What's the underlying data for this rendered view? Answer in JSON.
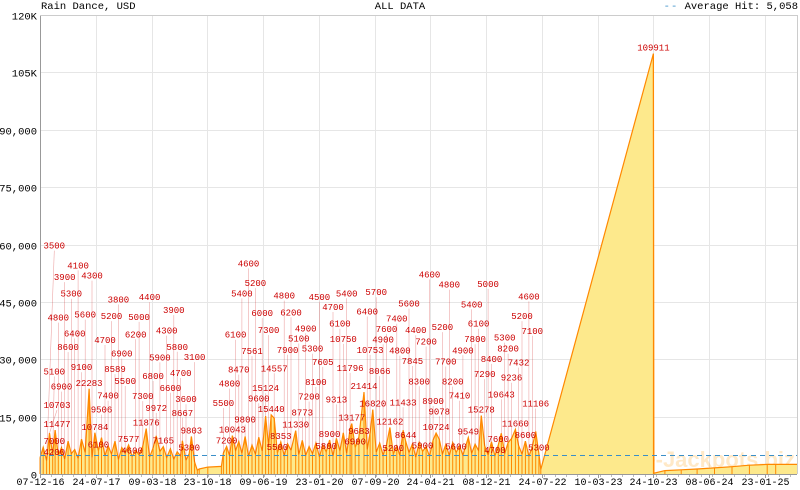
{
  "header": {
    "title": "Rain Dance, USD",
    "subtitle": "ALL DATA",
    "legend_dash": "--",
    "legend_label": "Average Hit: 5,058"
  },
  "watermark": "Online-Jackpots.biz",
  "colors": {
    "fill": "#fde98c",
    "line": "#ff8800",
    "labels": "#cc0000",
    "average": "#3a8fc8",
    "grid": "#e6e6e6",
    "axis": "#999999"
  },
  "chart_data": {
    "type": "area",
    "title": "Rain Dance, USD",
    "subtitle": "ALL DATA",
    "xlabel": "",
    "ylabel": "",
    "ylim": [
      0,
      120000
    ],
    "grid": true,
    "legend": "top-right",
    "average": 5058,
    "y_ticks": [
      {
        "value": 0,
        "label": "0"
      },
      {
        "value": 15000,
        "label": "15,000"
      },
      {
        "value": 30000,
        "label": "30,000"
      },
      {
        "value": 45000,
        "label": "45,000"
      },
      {
        "value": 60000,
        "label": "60,000"
      },
      {
        "value": 75000,
        "label": "75,000"
      },
      {
        "value": 90000,
        "label": "90,000"
      },
      {
        "value": 105000,
        "label": "105K"
      },
      {
        "value": 120000,
        "label": "120K"
      }
    ],
    "x_ticks": [
      {
        "date": "2016-12-07",
        "label": "07-12-16"
      },
      {
        "date": "2017-07-24",
        "label": "24-07-17"
      },
      {
        "date": "2018-03-09",
        "label": "09-03-18"
      },
      {
        "date": "2018-10-23",
        "label": "23-10-18"
      },
      {
        "date": "2019-06-09",
        "label": "09-06-19"
      },
      {
        "date": "2020-01-23",
        "label": "23-01-20"
      },
      {
        "date": "2020-09-07",
        "label": "07-09-20"
      },
      {
        "date": "2021-04-24",
        "label": "24-04-21"
      },
      {
        "date": "2021-12-08",
        "label": "08-12-21"
      },
      {
        "date": "2022-07-24",
        "label": "24-07-22"
      },
      {
        "date": "2023-03-10",
        "label": "10-03-23"
      },
      {
        "date": "2023-10-24",
        "label": "24-10-23"
      },
      {
        "date": "2024-06-08",
        "label": "08-06-24"
      },
      {
        "date": "2025-01-23",
        "label": "23-01-25"
      }
    ],
    "points": [
      [
        "2016-12-07",
        4200
      ],
      [
        "2016-12-20",
        7000
      ],
      [
        "2017-01-03",
        3500
      ],
      [
        "2017-01-15",
        10703
      ],
      [
        "2017-01-28",
        5100
      ],
      [
        "2017-02-07",
        11477
      ],
      [
        "2017-02-20",
        4800
      ],
      [
        "2017-03-05",
        6900
      ],
      [
        "2017-03-18",
        3900
      ],
      [
        "2017-04-01",
        8600
      ],
      [
        "2017-04-14",
        5300
      ],
      [
        "2017-04-28",
        6400
      ],
      [
        "2017-05-12",
        4100
      ],
      [
        "2017-05-26",
        9100
      ],
      [
        "2017-06-10",
        5600
      ],
      [
        "2017-06-26",
        22283
      ],
      [
        "2017-07-08",
        4300
      ],
      [
        "2017-07-20",
        10784
      ],
      [
        "2017-08-03",
        6100
      ],
      [
        "2017-08-16",
        9506
      ],
      [
        "2017-08-30",
        4700
      ],
      [
        "2017-09-12",
        7400
      ],
      [
        "2017-09-26",
        5200
      ],
      [
        "2017-10-10",
        8589
      ],
      [
        "2017-10-24",
        3800
      ],
      [
        "2017-11-07",
        6900
      ],
      [
        "2017-11-21",
        5500
      ],
      [
        "2017-12-05",
        7577
      ],
      [
        "2017-12-19",
        4600
      ],
      [
        "2018-01-03",
        6200
      ],
      [
        "2018-01-17",
        5000
      ],
      [
        "2018-02-01",
        7300
      ],
      [
        "2018-02-15",
        11876
      ],
      [
        "2018-03-01",
        4400
      ],
      [
        "2018-03-15",
        6800
      ],
      [
        "2018-03-28",
        9972
      ],
      [
        "2018-04-12",
        5900
      ],
      [
        "2018-04-26",
        7165
      ],
      [
        "2018-05-10",
        4300
      ],
      [
        "2018-05-25",
        6600
      ],
      [
        "2018-06-08",
        3900
      ],
      [
        "2018-06-22",
        5800
      ],
      [
        "2018-07-06",
        4700
      ],
      [
        "2018-07-13",
        8667
      ],
      [
        "2018-07-28",
        3600
      ],
      [
        "2018-08-10",
        5300
      ],
      [
        "2018-08-19",
        9803
      ],
      [
        "2018-09-01",
        3100
      ],
      [
        "2018-09-12",
        1000
      ],
      [
        "2018-09-20",
        1300
      ],
      [
        "2018-10-25",
        1800
      ],
      [
        "2018-12-20",
        2000
      ],
      [
        "2018-12-28",
        5500
      ],
      [
        "2019-01-10",
        7200
      ],
      [
        "2019-01-22",
        4800
      ],
      [
        "2019-02-03",
        10043
      ],
      [
        "2019-02-16",
        6100
      ],
      [
        "2019-03-01",
        8470
      ],
      [
        "2019-03-14",
        5400
      ],
      [
        "2019-03-27",
        9800
      ],
      [
        "2019-04-10",
        4600
      ],
      [
        "2019-04-24",
        7561
      ],
      [
        "2019-05-08",
        5200
      ],
      [
        "2019-05-22",
        9600
      ],
      [
        "2019-06-05",
        6000
      ],
      [
        "2019-06-19",
        15124
      ],
      [
        "2019-07-01",
        7300
      ],
      [
        "2019-07-12",
        15440
      ],
      [
        "2019-07-24",
        14557
      ],
      [
        "2019-08-06",
        5500
      ],
      [
        "2019-08-20",
        8353
      ],
      [
        "2019-09-03",
        4800
      ],
      [
        "2019-09-17",
        7900
      ],
      [
        "2019-10-01",
        6200
      ],
      [
        "2019-10-20",
        11330
      ],
      [
        "2019-11-02",
        5100
      ],
      [
        "2019-11-16",
        8773
      ],
      [
        "2019-11-30",
        4900
      ],
      [
        "2019-12-14",
        7200
      ],
      [
        "2019-12-28",
        5300
      ],
      [
        "2020-01-11",
        8100
      ],
      [
        "2020-01-25",
        4500
      ],
      [
        "2020-02-08",
        7605
      ],
      [
        "2020-02-22",
        5800
      ],
      [
        "2020-03-07",
        8900
      ],
      [
        "2020-03-21",
        4700
      ],
      [
        "2020-04-04",
        9313
      ],
      [
        "2020-04-18",
        6100
      ],
      [
        "2020-05-02",
        10750
      ],
      [
        "2020-05-16",
        5400
      ],
      [
        "2020-05-30",
        11796
      ],
      [
        "2020-06-06",
        13177
      ],
      [
        "2020-06-20",
        6900
      ],
      [
        "2020-07-05",
        9683
      ],
      [
        "2020-07-26",
        21414
      ],
      [
        "2020-08-08",
        6400
      ],
      [
        "2020-08-20",
        10753
      ],
      [
        "2020-08-31",
        16820
      ],
      [
        "2020-09-14",
        5700
      ],
      [
        "2020-09-28",
        8066
      ],
      [
        "2020-10-12",
        4900
      ],
      [
        "2020-10-26",
        7600
      ],
      [
        "2020-11-09",
        12162
      ],
      [
        "2020-11-23",
        5200
      ],
      [
        "2020-12-07",
        7400
      ],
      [
        "2020-12-20",
        4800
      ],
      [
        "2021-01-02",
        11433
      ],
      [
        "2021-01-12",
        8644
      ],
      [
        "2021-01-26",
        5600
      ],
      [
        "2021-02-09",
        7845
      ],
      [
        "2021-02-23",
        4400
      ],
      [
        "2021-03-09",
        8300
      ],
      [
        "2021-03-23",
        5900
      ],
      [
        "2021-04-06",
        7200
      ],
      [
        "2021-04-20",
        4600
      ],
      [
        "2021-05-05",
        8900
      ],
      [
        "2021-05-17",
        10724
      ],
      [
        "2021-05-30",
        9078
      ],
      [
        "2021-06-12",
        5200
      ],
      [
        "2021-06-26",
        7700
      ],
      [
        "2021-07-10",
        4800
      ],
      [
        "2021-07-24",
        8200
      ],
      [
        "2021-08-07",
        5600
      ],
      [
        "2021-08-21",
        7410
      ],
      [
        "2021-09-04",
        4900
      ],
      [
        "2021-09-26",
        9549
      ],
      [
        "2021-10-10",
        5400
      ],
      [
        "2021-10-24",
        7800
      ],
      [
        "2021-11-07",
        6100
      ],
      [
        "2021-11-18",
        15278
      ],
      [
        "2021-12-02",
        7290
      ],
      [
        "2021-12-16",
        5000
      ],
      [
        "2021-12-30",
        8400
      ],
      [
        "2022-01-13",
        4700
      ],
      [
        "2022-01-27",
        7600
      ],
      [
        "2022-02-08",
        10643
      ],
      [
        "2022-02-22",
        5300
      ],
      [
        "2022-03-08",
        8200
      ],
      [
        "2022-03-22",
        9236
      ],
      [
        "2022-04-07",
        11660
      ],
      [
        "2022-04-20",
        7432
      ],
      [
        "2022-05-04",
        5200
      ],
      [
        "2022-05-18",
        8600
      ],
      [
        "2022-06-01",
        4600
      ],
      [
        "2022-06-15",
        7100
      ],
      [
        "2022-06-29",
        11106
      ],
      [
        "2022-07-12",
        5300
      ],
      [
        "2022-07-20",
        1200
      ],
      [
        "2023-10-24",
        109911
      ],
      [
        "2023-10-26",
        200
      ],
      [
        "2023-12-10",
        900
      ],
      [
        "2024-02-15",
        1100
      ],
      [
        "2024-04-20",
        1300
      ],
      [
        "2024-06-30",
        1600
      ],
      [
        "2024-09-10",
        1900
      ],
      [
        "2024-11-20",
        2300
      ],
      [
        "2025-02-01",
        2500
      ],
      [
        "2025-03-08",
        2500
      ]
    ]
  }
}
